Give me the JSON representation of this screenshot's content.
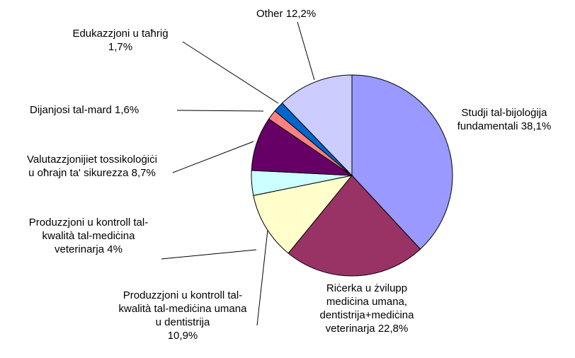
{
  "chart_data": {
    "type": "pie",
    "categories": [
      "Studji tal-bijoloġija fundamentali",
      "Riċerka u żvilupp mediċina umana, dentistrija+mediċina veterinarja",
      "Produzzjoni u kontroll tal-kwalità tal-mediċina umana u dentistrija",
      "Produzzjoni u kontroll tal-kwalità tal-mediċina veterinarja",
      "Valutazzjonijiet tossikoloġiċi u oħrajn ta' sikurezza",
      "Dijanjosi tal-mard",
      "Edukazzjoni u taħriġ",
      "Other"
    ],
    "values": [
      38.1,
      22.8,
      10.9,
      4,
      8.7,
      1.6,
      1.7,
      12.2
    ],
    "value_labels": [
      "38,1%",
      "22,8%",
      "10,9%",
      "4%",
      "8,7%",
      "1,6%",
      "1,7%",
      "12,2%"
    ],
    "colors": [
      "#9999ff",
      "#993366",
      "#ffffcc",
      "#ccffff",
      "#660066",
      "#ff8080",
      "#0066cc",
      "#ccccff"
    ]
  }
}
